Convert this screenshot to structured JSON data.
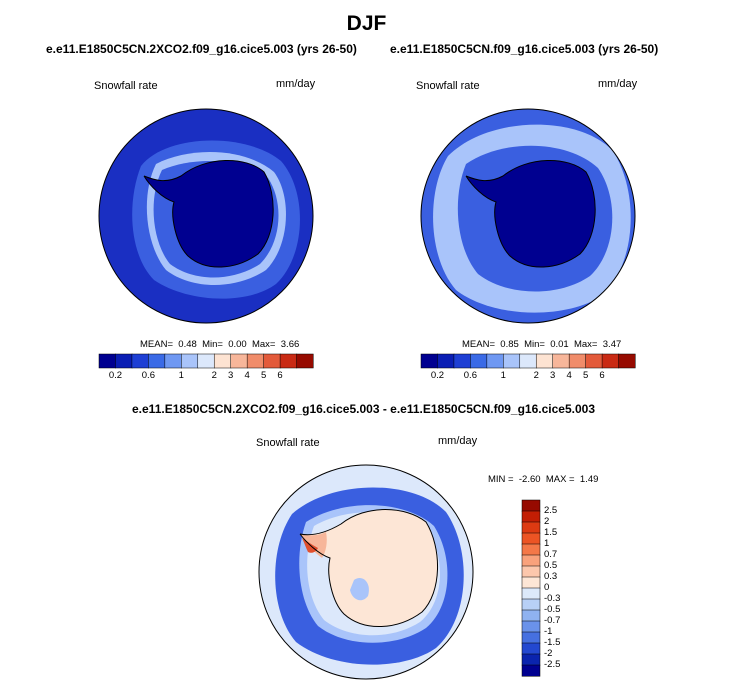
{
  "figure": {
    "title": "DJF",
    "panels": [
      {
        "case": "e.e11.E1850C5CN.2XCO2.f09_g16.cice5.003 (yrs 26-50)",
        "variable": "Snowfall rate",
        "units": "mm/day",
        "stats": {
          "mean_label": "MEAN=",
          "mean": "0.48",
          "min_label": "Min=",
          "min": "0.00",
          "max_label": "Max=",
          "max": "3.66"
        }
      },
      {
        "case": "e.e11.E1850C5CN.f09_g16.cice5.003 (yrs 26-50)",
        "variable": "Snowfall rate",
        "units": "mm/day",
        "stats": {
          "mean_label": "MEAN=",
          "mean": "0.85",
          "min_label": "Min=",
          "min": "0.01",
          "max_label": "Max=",
          "max": "3.47"
        }
      }
    ],
    "diff_panel": {
      "case": "e.e11.E1850C5CN.2XCO2.f09_g16.cice5.003 - e.e11.E1850C5CN.f09_g16.cice5.003",
      "variable": "Snowfall rate",
      "units": "mm/day",
      "stats": {
        "min_label": "MIN =",
        "min": "-2.60",
        "max_label": "MAX =",
        "max": "1.49"
      }
    }
  },
  "colorbars": {
    "horizontal": {
      "colors": [
        "#000090",
        "#0a1eb4",
        "#1e3fd4",
        "#3a6ae6",
        "#6f98f2",
        "#a9c4fa",
        "#dce8fb",
        "#fde3d2",
        "#f7b69a",
        "#f08c6a",
        "#e35a3a",
        "#c92a14",
        "#960a00"
      ],
      "ticks": [
        "0.2",
        "0.6",
        "1",
        "2",
        "3",
        "4",
        "5",
        "6"
      ],
      "tick_boundaries": [
        1,
        3,
        5,
        7,
        8,
        9,
        10,
        11
      ]
    },
    "vertical": {
      "colors": [
        "#960a00",
        "#c31e04",
        "#dd3a12",
        "#ec5424",
        "#f47848",
        "#f9a27c",
        "#fcc7ac",
        "#fde6d6",
        "#dce9fa",
        "#b8d0f6",
        "#8fb2f0",
        "#6a92ea",
        "#4670e0",
        "#2348d0",
        "#0a24ae",
        "#000090"
      ],
      "ticks": [
        "2.5",
        "2",
        "1.5",
        "1",
        "0.7",
        "0.5",
        "0.3",
        "0",
        "-0.3",
        "-0.5",
        "-0.7",
        "-1",
        "-1.5",
        "-2",
        "-2.5"
      ]
    }
  },
  "map_colors": {
    "deep": "#000090",
    "dark": "#1a2fc2",
    "mid": "#3a5fe0",
    "light": "#a9c4fa",
    "pale": "#dce8fb",
    "diff_pos_light": "#fde6d6",
    "diff_pos_mid": "#f7b69a",
    "diff_pos_strong": "#e2502f"
  }
}
